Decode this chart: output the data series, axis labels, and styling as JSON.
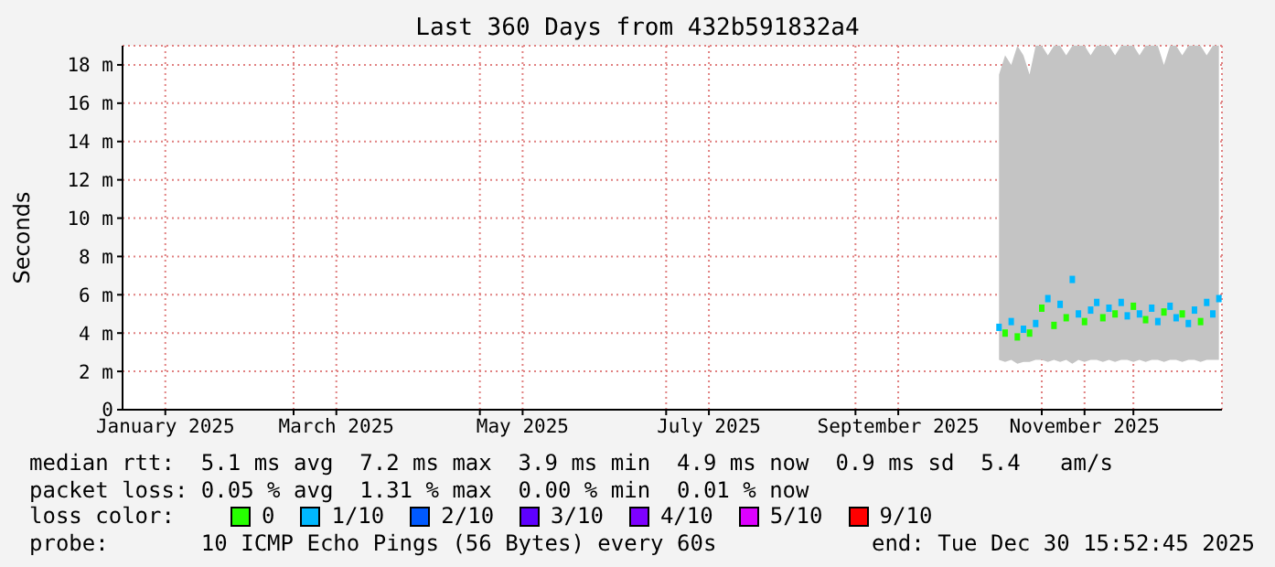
{
  "chart_data": {
    "type": "scatter",
    "title": "Last 360 Days from 432b591832a4",
    "ylabel": "Seconds",
    "x": [
      "2025-10-18",
      "2025-10-20",
      "2025-10-22",
      "2025-10-24",
      "2025-10-26",
      "2025-10-28",
      "2025-10-30",
      "2025-11-01",
      "2025-11-03",
      "2025-11-05",
      "2025-11-07",
      "2025-11-09",
      "2025-11-11",
      "2025-11-13",
      "2025-11-15",
      "2025-11-17",
      "2025-11-19",
      "2025-11-21",
      "2025-11-23",
      "2025-11-25",
      "2025-11-27",
      "2025-11-29",
      "2025-12-01",
      "2025-12-03",
      "2025-12-05",
      "2025-12-07",
      "2025-12-09",
      "2025-12-11",
      "2025-12-13",
      "2025-12-15",
      "2025-12-17",
      "2025-12-19",
      "2025-12-21",
      "2025-12-23",
      "2025-12-25",
      "2025-12-27",
      "2025-12-29"
    ],
    "series": [
      {
        "name": "0",
        "color": "#26ff00",
        "values": [
          null,
          4.0,
          null,
          3.8,
          null,
          4.0,
          null,
          5.3,
          null,
          4.4,
          null,
          4.8,
          null,
          null,
          4.6,
          null,
          null,
          4.8,
          null,
          5.0,
          null,
          null,
          5.4,
          null,
          4.7,
          null,
          null,
          5.1,
          null,
          null,
          5.0,
          null,
          null,
          4.6,
          null,
          null,
          null
        ]
      },
      {
        "name": "1/10",
        "color": "#00b8ff",
        "values": [
          4.3,
          null,
          4.6,
          null,
          4.2,
          null,
          4.5,
          null,
          5.8,
          null,
          5.5,
          null,
          6.8,
          5.0,
          null,
          5.2,
          5.6,
          null,
          5.3,
          null,
          5.6,
          4.9,
          null,
          5.0,
          null,
          5.3,
          4.6,
          null,
          5.4,
          4.8,
          null,
          4.5,
          5.2,
          null,
          5.6,
          5.0,
          5.8
        ],
        "lower": [
          2.6,
          2.5,
          2.6,
          2.4,
          2.5,
          2.5,
          2.6,
          2.6,
          2.5,
          2.6,
          2.5,
          2.6,
          2.4,
          2.6,
          2.5,
          2.6,
          2.6,
          2.5,
          2.6,
          2.5,
          2.6,
          2.6,
          2.5,
          2.6,
          2.5,
          2.6,
          2.6,
          2.5,
          2.6,
          2.6,
          2.5,
          2.6,
          2.6,
          2.5,
          2.6,
          2.6,
          2.6
        ],
        "upper": [
          17.5,
          18.5,
          18,
          19,
          18.5,
          17.5,
          19,
          19,
          18.5,
          19,
          19,
          18.5,
          19,
          19,
          19,
          18.5,
          19,
          19,
          19,
          18.5,
          19,
          19,
          19,
          18.5,
          19,
          19,
          19,
          18,
          19,
          19,
          18.5,
          19,
          19,
          19,
          18.5,
          19,
          19
        ]
      },
      {
        "name": "2/10",
        "color": "#0059ff",
        "values": [
          null,
          null,
          null,
          null,
          null,
          null,
          null,
          null,
          null,
          null,
          null,
          null,
          null,
          null,
          null,
          null,
          null,
          null,
          null,
          null,
          null,
          null,
          null,
          null,
          null,
          null,
          null,
          null,
          null,
          null,
          null,
          null,
          null,
          null,
          null,
          null,
          null
        ]
      },
      {
        "name": "3/10",
        "color": "#5e00ff",
        "values": [
          null,
          null,
          null,
          null,
          null,
          null,
          null,
          null,
          null,
          null,
          null,
          null,
          null,
          null,
          null,
          null,
          null,
          null,
          null,
          null,
          null,
          null,
          null,
          null,
          null,
          null,
          null,
          null,
          null,
          null,
          null,
          null,
          null,
          null,
          null,
          null,
          null
        ]
      },
      {
        "name": "4/10",
        "color": "#7e00ff",
        "values": [
          null,
          null,
          null,
          null,
          null,
          null,
          null,
          null,
          null,
          null,
          null,
          null,
          null,
          null,
          null,
          null,
          null,
          null,
          null,
          null,
          null,
          null,
          null,
          null,
          null,
          null,
          null,
          null,
          null,
          null,
          null,
          null,
          null,
          null,
          null,
          null,
          null
        ]
      },
      {
        "name": "5/10",
        "color": "#dd00ff",
        "values": [
          null,
          null,
          null,
          null,
          null,
          null,
          null,
          null,
          null,
          null,
          null,
          null,
          null,
          null,
          null,
          null,
          null,
          null,
          null,
          null,
          null,
          null,
          null,
          null,
          null,
          null,
          null,
          null,
          null,
          null,
          null,
          null,
          null,
          null,
          null,
          null,
          null
        ]
      },
      {
        "name": "9/10",
        "color": "#ff0000",
        "values": [
          null,
          null,
          null,
          null,
          null,
          null,
          null,
          null,
          null,
          null,
          null,
          null,
          null,
          null,
          null,
          null,
          null,
          null,
          null,
          null,
          null,
          null,
          null,
          null,
          null,
          null,
          null,
          null,
          null,
          null,
          null,
          null,
          null,
          null,
          null,
          null,
          null
        ]
      }
    ],
    "xlim": [
      "2025-01-04",
      "2025-12-30"
    ],
    "xticks": [
      {
        "value": "2025-01-18",
        "label": "January 2025"
      },
      {
        "value": "2025-03-01",
        "label": null
      },
      {
        "value": "2025-03-15",
        "label": "March 2025"
      },
      {
        "value": "2025-05-01",
        "label": null
      },
      {
        "value": "2025-05-15",
        "label": "May 2025"
      },
      {
        "value": "2025-07-01",
        "label": null
      },
      {
        "value": "2025-07-15",
        "label": "July 2025"
      },
      {
        "value": "2025-09-01",
        "label": null
      },
      {
        "value": "2025-09-15",
        "label": "September 2025"
      },
      {
        "value": "2025-11-01",
        "label": null
      },
      {
        "value": "2025-11-15",
        "label": "November 2025"
      },
      {
        "value": "2025-12-01",
        "label": null
      }
    ],
    "ylim": [
      0,
      19
    ],
    "yticks": [
      0,
      {
        "value": 2,
        "label": "2 m"
      },
      {
        "value": 4,
        "label": "4 m"
      },
      {
        "value": 6,
        "label": "6 m"
      },
      {
        "value": 8,
        "label": "8 m"
      },
      {
        "value": 10,
        "label": "10 m"
      },
      {
        "value": 12,
        "label": "12 m"
      },
      {
        "value": 14,
        "label": "14 m"
      },
      {
        "value": 16,
        "label": "16 m"
      },
      {
        "value": 18,
        "label": "18 m"
      }
    ],
    "grid": true,
    "marker": "square",
    "legend": "bottom",
    "legend_title": "loss color:",
    "annotations": [
      "median rtt:  5.1 ms avg  7.2 ms max  3.9 ms min  4.9 ms now  0.9 ms sd  5.4   am/s",
      "packet loss: 0.05 % avg  1.31 % max  0.00 % min  0.01 % now",
      "probe:       10 ICMP Echo Pings (56 Bytes) every 60s",
      "end: Tue Dec 30 15:52:45 2025"
    ]
  }
}
